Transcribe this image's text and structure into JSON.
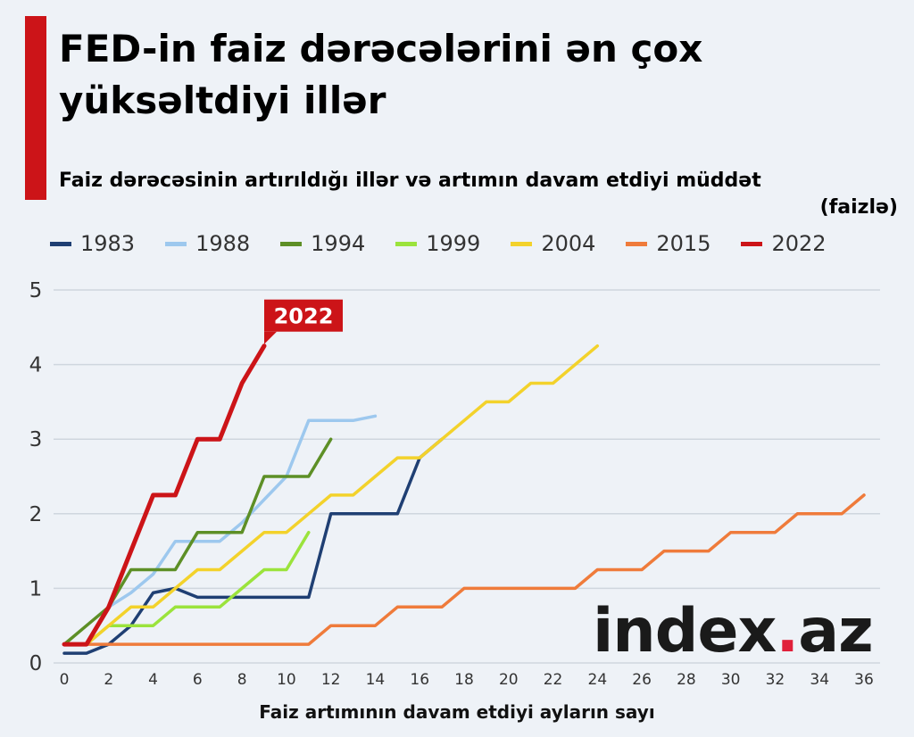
{
  "header": {
    "title": "FED-in faiz dərəcələrini ən çox yüksəltdiyi illər",
    "subtitle": "Faiz dərəcəsinin artırıldığı illər və artımın davam etdiyi müddət",
    "unit": "(faizlə)"
  },
  "watermark": {
    "main": "index",
    "dot": ".",
    "tld": "az"
  },
  "chart_data": {
    "type": "line",
    "title": "FED-in faiz dərəcələrini ən çox yüksəltdiyi illər",
    "subtitle": "Faiz dərəcəsinin artırıldığı illər və artımın davam etdiyi müddət (faizlə)",
    "xlabel": "Faiz artımının davam etdiyi ayların sayı",
    "ylabel": "",
    "xlim": [
      0,
      36
    ],
    "ylim": [
      0,
      5
    ],
    "x_ticks": [
      0,
      2,
      4,
      6,
      8,
      10,
      12,
      14,
      16,
      18,
      20,
      22,
      24,
      26,
      28,
      30,
      32,
      34,
      36
    ],
    "y_ticks": [
      0,
      1,
      2,
      3,
      4,
      5
    ],
    "grid": true,
    "legend": "top",
    "annotation": {
      "series": "2022",
      "text": "2022"
    },
    "series": [
      {
        "name": "1983",
        "color": "#1f3f73",
        "x": [
          0,
          1,
          2,
          3,
          4,
          5,
          6,
          7,
          8,
          9,
          10,
          11,
          12,
          13,
          14,
          15,
          16,
          17
        ],
        "values": [
          0.13,
          0.13,
          0.25,
          0.5,
          0.94,
          1.0,
          0.88,
          0.88,
          0.88,
          0.88,
          0.88,
          0.88,
          2.0,
          2.0,
          2.0,
          2.0,
          2.75,
          3.0
        ]
      },
      {
        "name": "1988",
        "color": "#9dc8ee",
        "x": [
          0,
          1,
          2,
          3,
          4,
          5,
          6,
          7,
          8,
          9,
          10,
          11,
          12,
          13,
          14
        ],
        "values": [
          0.25,
          0.25,
          0.75,
          0.94,
          1.19,
          1.63,
          1.63,
          1.63,
          1.88,
          2.19,
          2.5,
          3.25,
          3.25,
          3.25,
          3.31
        ]
      },
      {
        "name": "1994",
        "color": "#5d8f26",
        "x": [
          0,
          1,
          2,
          3,
          4,
          5,
          6,
          7,
          8,
          9,
          10,
          11,
          12
        ],
        "values": [
          0.25,
          0.5,
          0.75,
          1.25,
          1.25,
          1.25,
          1.75,
          1.75,
          1.75,
          2.5,
          2.5,
          2.5,
          3.0
        ]
      },
      {
        "name": "1999",
        "color": "#9be33c",
        "x": [
          0,
          1,
          2,
          3,
          4,
          5,
          6,
          7,
          8,
          9,
          10,
          11
        ],
        "values": [
          0.25,
          0.25,
          0.5,
          0.5,
          0.5,
          0.75,
          0.75,
          0.75,
          1.0,
          1.25,
          1.25,
          1.75
        ]
      },
      {
        "name": "2004",
        "color": "#f3d22b",
        "x": [
          0,
          1,
          2,
          3,
          4,
          5,
          6,
          7,
          8,
          9,
          10,
          11,
          12,
          13,
          14,
          15,
          16,
          17,
          18,
          19,
          20,
          21,
          22,
          23,
          24
        ],
        "values": [
          0.25,
          0.25,
          0.5,
          0.75,
          0.75,
          1.0,
          1.25,
          1.25,
          1.5,
          1.75,
          1.75,
          2.0,
          2.25,
          2.25,
          2.5,
          2.75,
          2.75,
          3.0,
          3.25,
          3.5,
          3.5,
          3.75,
          3.75,
          4.0,
          4.25
        ]
      },
      {
        "name": "2015",
        "color": "#ef7b3b",
        "x": [
          0,
          1,
          2,
          3,
          4,
          5,
          6,
          7,
          8,
          9,
          10,
          11,
          12,
          13,
          14,
          15,
          16,
          17,
          18,
          19,
          20,
          21,
          22,
          23,
          24,
          25,
          26,
          27,
          28,
          29,
          30,
          31,
          32,
          33,
          34,
          35,
          36
        ],
        "values": [
          0.25,
          0.25,
          0.25,
          0.25,
          0.25,
          0.25,
          0.25,
          0.25,
          0.25,
          0.25,
          0.25,
          0.25,
          0.5,
          0.5,
          0.5,
          0.75,
          0.75,
          0.75,
          1.0,
          1.0,
          1.0,
          1.0,
          1.0,
          1.0,
          1.25,
          1.25,
          1.25,
          1.5,
          1.5,
          1.5,
          1.75,
          1.75,
          1.75,
          2.0,
          2.0,
          2.0,
          2.25
        ]
      },
      {
        "name": "2022",
        "color": "#cc1418",
        "x": [
          0,
          1,
          2,
          3,
          4,
          5,
          6,
          7,
          8,
          9
        ],
        "values": [
          0.25,
          0.25,
          0.75,
          1.5,
          2.25,
          2.25,
          3.0,
          3.0,
          3.75,
          4.25
        ]
      }
    ]
  }
}
